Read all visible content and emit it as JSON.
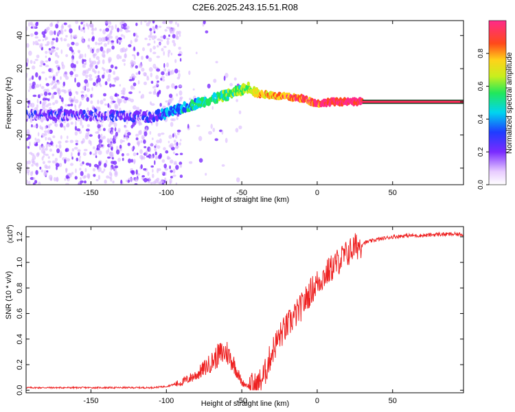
{
  "title": "C2E6.2025.243.15.51.R08",
  "chart_data": [
    {
      "type": "heatmap",
      "xlabel": "Height of straight line (km)",
      "ylabel": "Frequency (Hz)",
      "xlim": [
        -193,
        97
      ],
      "ylim": [
        -50,
        49
      ],
      "xticks": [
        "-150",
        "-100",
        "-50",
        "0",
        "50"
      ],
      "xtick_values": [
        -150,
        -100,
        -50,
        0,
        50
      ],
      "yticks": [
        "-40",
        "-20",
        "0",
        "20",
        "40"
      ],
      "ytick_values": [
        -40,
        -20,
        0,
        20,
        40
      ],
      "colorbar": {
        "label": "Normalized spectral amplitude",
        "range": [
          0,
          1
        ],
        "ticks": [
          "0.0",
          "0.2",
          "0.4",
          "0.6",
          "0.8"
        ],
        "tick_values": [
          0.0,
          0.2,
          0.4,
          0.6,
          0.8
        ]
      },
      "ridge": {
        "description_points_height_km": [
          -193,
          -150,
          -110,
          -100,
          -80,
          -60,
          -45,
          -40,
          -30,
          -20,
          -10,
          0,
          10,
          30,
          97
        ],
        "frequency_hz": [
          -8,
          -8,
          -9,
          -7,
          -1,
          4,
          9,
          5,
          4,
          3,
          2,
          -1,
          0,
          0,
          0
        ],
        "amplitude": [
          0.12,
          0.12,
          0.15,
          0.3,
          0.4,
          0.5,
          0.55,
          0.7,
          0.75,
          0.8,
          0.82,
          0.85,
          0.88,
          0.92,
          0.95
        ]
      }
    },
    {
      "type": "line",
      "xlabel": "Height of straight line (km)",
      "ylabel": "SNR (10 * v/v)",
      "yscale_label": "(x10",
      "yscale_exponent": "4",
      "xlim": [
        -193,
        97
      ],
      "ylim": [
        -0.02,
        1.28
      ],
      "xticks": [
        "-150",
        "-100",
        "-50",
        "0",
        "50"
      ],
      "xtick_values": [
        -150,
        -100,
        -50,
        0,
        50
      ],
      "yticks": [
        "0.0",
        "0.2",
        "0.4",
        "0.6",
        "0.8",
        "1.0",
        "1.2"
      ],
      "ytick_values": [
        0.0,
        0.2,
        0.4,
        0.6,
        0.8,
        1.0,
        1.2
      ],
      "color": "#ee2222",
      "series": [
        {
          "name": "SNR",
          "x": [
            -193,
            -150,
            -110,
            -100,
            -90,
            -80,
            -70,
            -65,
            -60,
            -55,
            -50,
            -45,
            -40,
            -35,
            -30,
            -25,
            -20,
            -15,
            -10,
            -5,
            0,
            5,
            10,
            15,
            20,
            25,
            30,
            40,
            50,
            60,
            70,
            80,
            97
          ],
          "y": [
            0.02,
            0.02,
            0.02,
            0.03,
            0.06,
            0.12,
            0.22,
            0.28,
            0.3,
            0.2,
            0.06,
            0.03,
            0.03,
            0.12,
            0.3,
            0.42,
            0.5,
            0.58,
            0.66,
            0.76,
            0.84,
            0.9,
            0.96,
            1.02,
            1.07,
            1.12,
            1.15,
            1.18,
            1.2,
            1.21,
            1.21,
            1.22,
            1.22
          ]
        }
      ]
    }
  ]
}
